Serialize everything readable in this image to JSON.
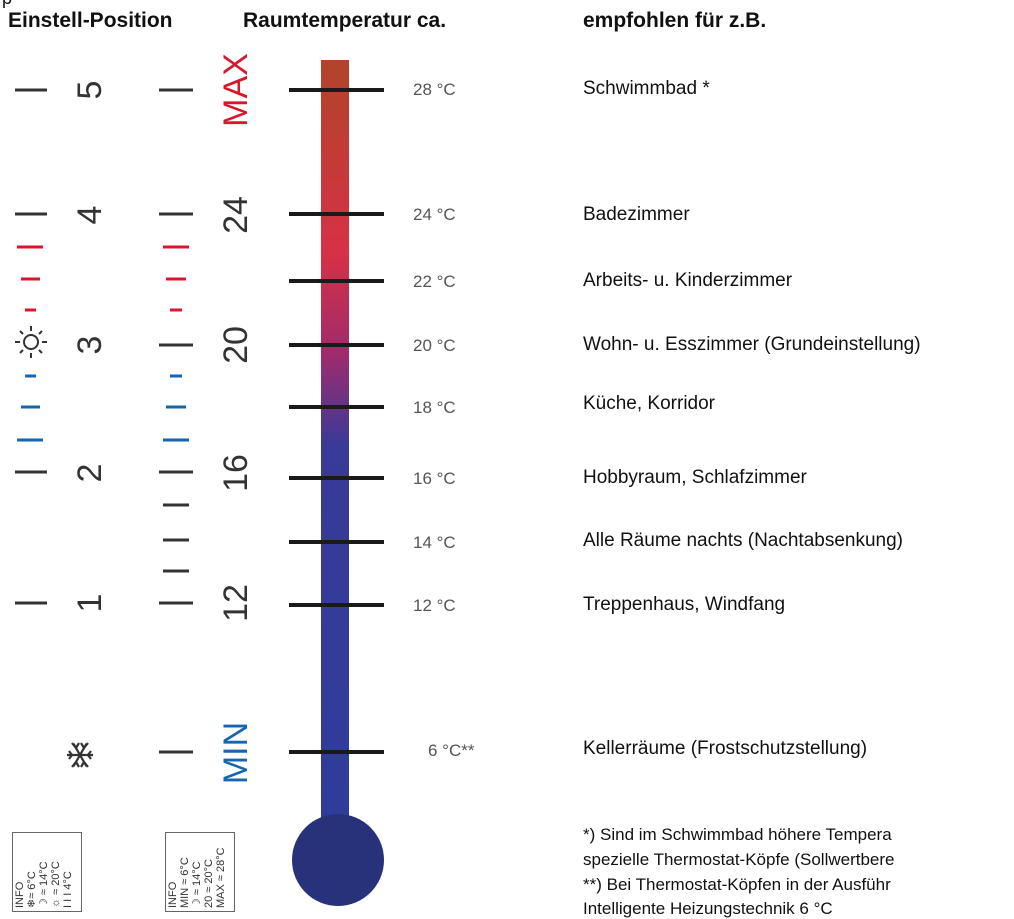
{
  "headers": {
    "top_fragment": "p",
    "position": "Einstell-Position",
    "room_temp": "Raumtemperatur ca.",
    "recommended": "empfohlen für z.B."
  },
  "positions": {
    "p5": "5",
    "p4": "4",
    "p3": "3",
    "p2": "2",
    "p1": "1"
  },
  "scale_labels": {
    "max": "MAX",
    "s24": "24",
    "s20": "20",
    "s16": "16",
    "s12": "12",
    "min": "MIN"
  },
  "temperatures": [
    {
      "label": "28 °C",
      "room": "Schwimmbad *"
    },
    {
      "label": "24 °C",
      "room": "Badezimmer"
    },
    {
      "label": "22 °C",
      "room": "Arbeits- u. Kinderzimmer"
    },
    {
      "label": "20 °C",
      "room": "Wohn- u. Esszimmer (Grundeinstellung)"
    },
    {
      "label": "18 °C",
      "room": "Küche, Korridor"
    },
    {
      "label": "16 °C",
      "room": "Hobbyraum, Schlafzimmer"
    },
    {
      "label": "14 °C",
      "room": "Alle Räume nachts (Nachtabsenkung)"
    },
    {
      "label": "12 °C",
      "room": "Treppenhaus, Windfang"
    },
    {
      "label": "6 °C**",
      "room": "Kellerräume (Frostschutzstellung)"
    }
  ],
  "notes": {
    "n1": "*) Sind im Schwimmbad höhere Tempera",
    "n2": "spezielle Thermostat-Köpfe (Sollwertbere",
    "n3": "**) Bei Thermostat-Köpfen in der Ausführ",
    "n4": "Intelligente Heizungstechnik 6 °C"
  },
  "info_left": {
    "title": "INFO",
    "r1": "❄≈ 6°C",
    "r2": "☽ ≈ 14°C",
    "r3": "☼ ≈ 20°C",
    "r4": "I I I 4°C"
  },
  "info_right": {
    "title": "INFO",
    "r1": "MIN ≈ 6°C",
    "r2": "☽ ≈ 14°C",
    "r3": "20 ≈ 20°C",
    "r4": "MAX ≈ 28°C"
  },
  "colors": {
    "red": "#d8172b",
    "blue": "#1565b0",
    "dark": "#333333",
    "bulb": "#28327a",
    "tube_top": "#b5432a",
    "tube_red": "#d73145",
    "tube_purple": "#9b2b6e",
    "tube_blue": "#2e3d9a"
  },
  "icons": [
    "sun-icon",
    "moon-icon",
    "snowflake-icon"
  ]
}
